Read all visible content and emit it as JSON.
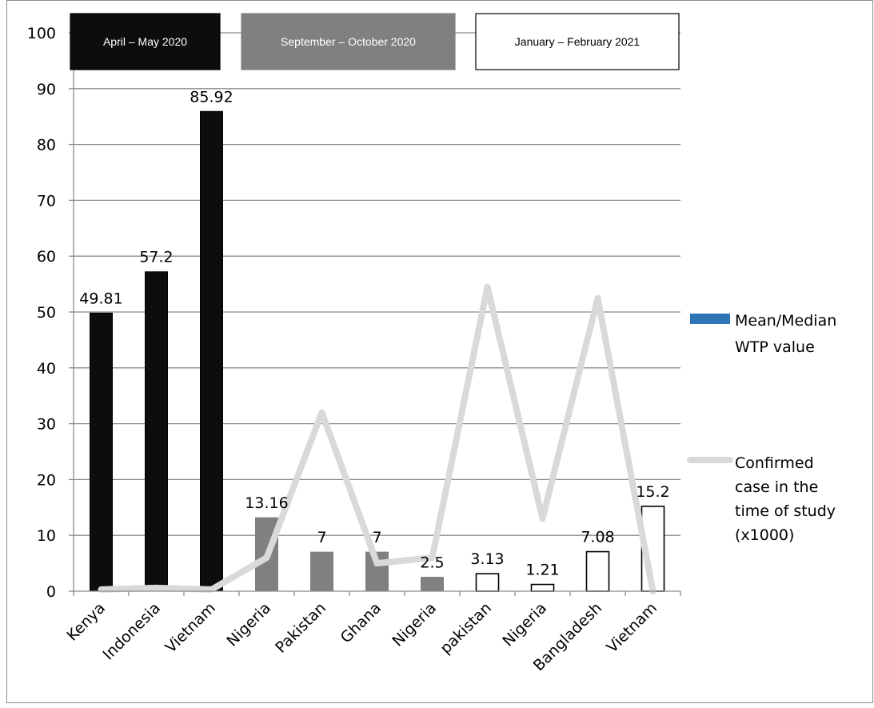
{
  "chart_data": {
    "type": "bar",
    "categories": [
      "Kenya",
      "Indonesia",
      "Vietnam",
      "Nigeria",
      "Pakistan",
      "Ghana",
      "Nigeria",
      "pakistan",
      "Nigeria",
      "Bangladesh",
      "Vietnam"
    ],
    "ylim": [
      0,
      100
    ],
    "yticks": [
      0,
      10,
      20,
      30,
      40,
      50,
      60,
      70,
      80,
      90,
      100
    ],
    "grid": true,
    "legend_position": "right",
    "series": [
      {
        "name": "Mean/Median WTP value",
        "type": "bar",
        "values": [
          49.81,
          57.2,
          85.92,
          13.16,
          7,
          7,
          2.5,
          3.13,
          1.21,
          7.08,
          15.2
        ],
        "labels": [
          "49.81",
          "57.2",
          "85.92",
          "13.16",
          "7",
          "7",
          "2.5",
          "3.13",
          "1.21",
          "7.08",
          "15.2"
        ],
        "group": [
          "april_may",
          "april_may",
          "april_may",
          "sep_oct",
          "sep_oct",
          "sep_oct",
          "sep_oct",
          "jan_feb",
          "jan_feb",
          "jan_feb",
          "jan_feb"
        ],
        "legend_color": "#2e75b6"
      },
      {
        "name": "Confirmed case in the time of study (x1000)",
        "type": "line",
        "values": [
          0.3,
          0.6,
          0.3,
          6,
          32,
          5,
          6,
          54.5,
          13,
          52.5,
          0
        ],
        "color": "#d9d9d9"
      }
    ],
    "legend": {
      "bar_lines": [
        "Mean/Median",
        "WTP value"
      ],
      "line_lines": [
        "Confirmed",
        "case in the",
        "time of study",
        "(x1000)"
      ]
    },
    "period_groups": [
      {
        "id": "april_may",
        "label": "April – May 2020",
        "fill": "#0d0d0d",
        "stroke": "#000000",
        "text_color": "#ffffff"
      },
      {
        "id": "sep_oct",
        "label": "September – October 2020",
        "fill": "#808080",
        "stroke": "#808080",
        "text_color": "#ffffff"
      },
      {
        "id": "jan_feb",
        "label": "January – February 2021",
        "fill": "#ffffff",
        "stroke": "#000000",
        "text_color": "#000000"
      }
    ]
  }
}
